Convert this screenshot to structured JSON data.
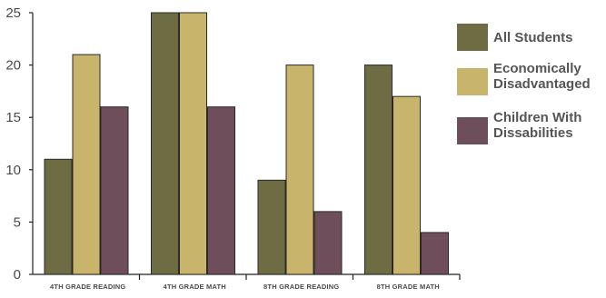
{
  "chart_data": {
    "type": "bar",
    "categories": [
      "4TH GRADE READING",
      "4TH GRADE MATH",
      "8TH GRADE READING",
      "8TH GRADE MATH"
    ],
    "series": [
      {
        "name": "All Students",
        "values": [
          11,
          25,
          9,
          20
        ],
        "color": "#6e6c42"
      },
      {
        "name": "Economically Disadvantaged",
        "legend_lines": [
          "Economically",
          "Disadvantaged"
        ],
        "values": [
          21,
          25,
          20,
          17
        ],
        "color": "#c9b46b"
      },
      {
        "name": "Children With Dissabilities",
        "legend_lines": [
          "Children With",
          "Dissabilities"
        ],
        "values": [
          16,
          16,
          6,
          4
        ],
        "color": "#6e4e5a"
      }
    ],
    "ylim": [
      0,
      25
    ],
    "yticks": [
      "0",
      "5",
      "10",
      "15",
      "20",
      "25"
    ],
    "legend_position": "right",
    "grid": false
  }
}
